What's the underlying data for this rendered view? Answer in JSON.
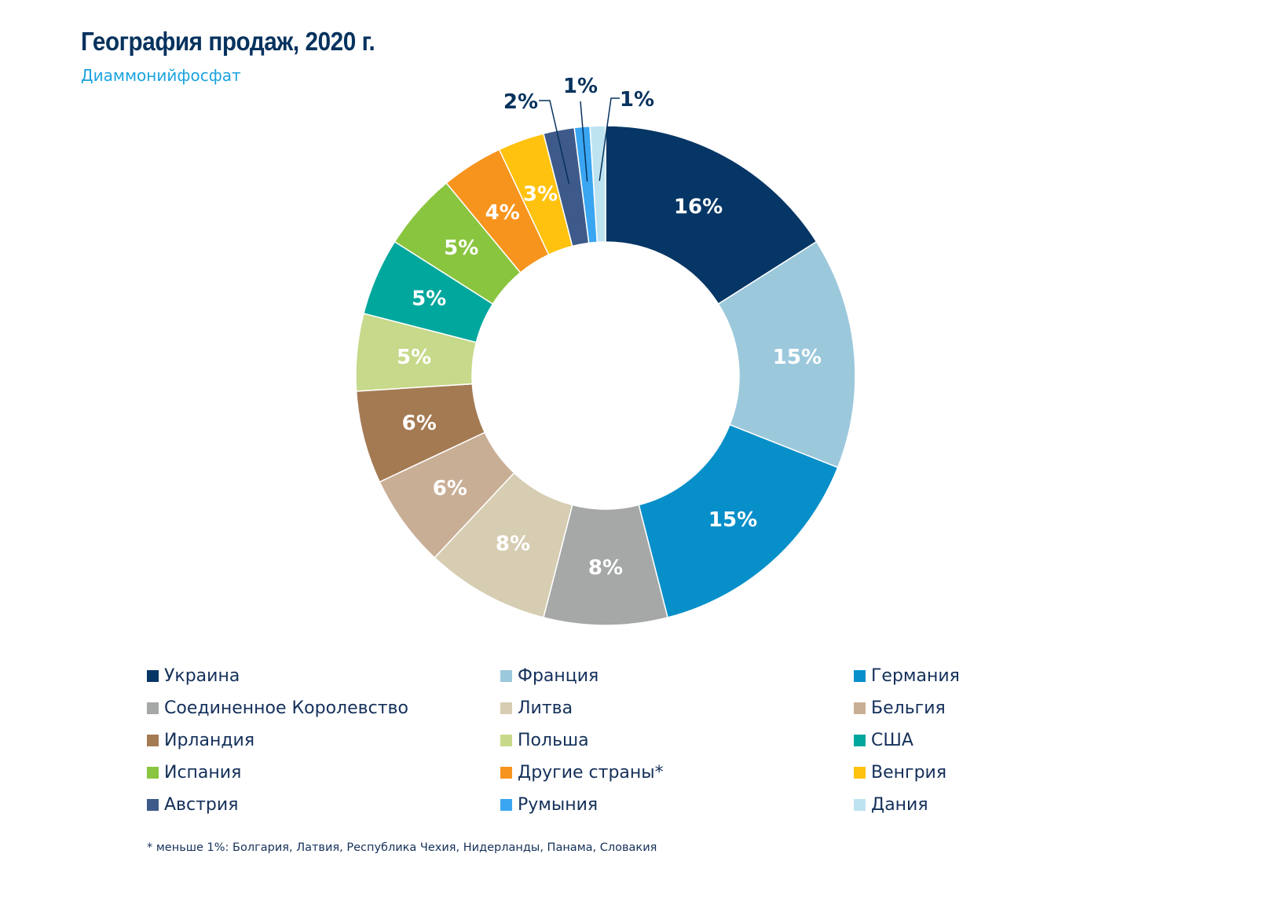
{
  "header": {
    "title": "География продаж, 2020 г.",
    "subtitle": "Диаммонийфосфат"
  },
  "chart_data": {
    "type": "pie",
    "subtype": "donut",
    "title": "География продаж, 2020 г.",
    "subtitle": "Диаммонийфосфат",
    "legend_position": "bottom",
    "value_unit": "%",
    "slices": [
      {
        "label": "Украина",
        "value": 16,
        "display": "16%",
        "color": "#063665"
      },
      {
        "label": "Франция",
        "value": 15,
        "display": "15%",
        "color": "#9cc8dc"
      },
      {
        "label": "Германия",
        "value": 15,
        "display": "15%",
        "color": "#078fc9"
      },
      {
        "label": "Соединенное Королевство",
        "value": 8,
        "display": "8%",
        "color": "#a6a8a8"
      },
      {
        "label": "Литва",
        "value": 8,
        "display": "8%",
        "color": "#d6cdb2"
      },
      {
        "label": "Бельгия",
        "value": 6,
        "display": "6%",
        "color": "#c9ae96"
      },
      {
        "label": "Ирландия",
        "value": 6,
        "display": "6%",
        "color": "#a47a53"
      },
      {
        "label": "Польша",
        "value": 5,
        "display": "5%",
        "color": "#c7d98a"
      },
      {
        "label": "США",
        "value": 5,
        "display": "5%",
        "color": "#00a79d"
      },
      {
        "label": "Испания",
        "value": 5,
        "display": "5%",
        "color": "#8ac53f"
      },
      {
        "label": "Другие страны*",
        "value": 4,
        "display": "4%",
        "color": "#f7941d"
      },
      {
        "label": "Венгрия",
        "value": 3,
        "display": "3%",
        "color": "#ffc20e"
      },
      {
        "label": "Австрия",
        "value": 2,
        "display": "2%",
        "color": "#3d5a8a"
      },
      {
        "label": "Румыния",
        "value": 1,
        "display": "1%",
        "color": "#3aa6f2"
      },
      {
        "label": "Дания",
        "value": 1,
        "display": "1%",
        "color": "#bee3f0"
      }
    ]
  },
  "footnote": "* меньше 1%: Болгария, Латвия, Республика Чехия, Нидерланды, Панама, Словакия"
}
